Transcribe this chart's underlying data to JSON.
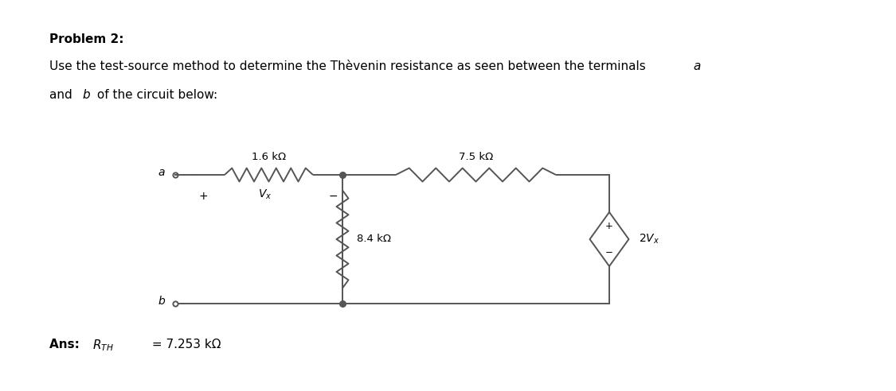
{
  "title_bold": "Problem 2:",
  "desc1a": "Use the test-source method to determine the Thèvenin resistance as seen between the terminals ",
  "desc1b": "a",
  "desc2a": "and ",
  "desc2b": "b",
  "desc2c": " of the circuit below:",
  "ans_bold": "Ans: ",
  "ans_value": " = 7.253 kΩ",
  "resistor1_label": "1.6 kΩ",
  "resistor2_label": "7.5 kΩ",
  "resistor3_label": "8.4 kΩ",
  "terminal_a": "a",
  "terminal_b": "b",
  "line_color": "#555555",
  "text_color": "#000000",
  "background_color": "#ffffff",
  "fig_width": 11.25,
  "fig_height": 4.92,
  "dpi": 100
}
